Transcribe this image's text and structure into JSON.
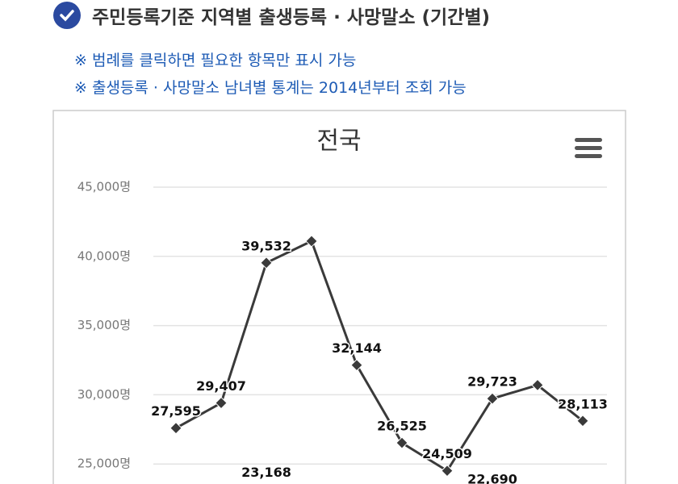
{
  "header": {
    "title": "주민등록기준 지역별 출생등록 · 사망말소 (기간별)",
    "notes": [
      "※ 범례를 클릭하면 필요한 항목만 표시 가능",
      "※ 출생등록 · 사망말소 남녀별 통계는 2014년부터 조회 가능"
    ]
  },
  "chart_data": {
    "type": "line",
    "title": "전국",
    "categories": [
      null,
      null,
      null,
      null,
      null,
      null,
      null,
      null,
      null,
      null
    ],
    "series": [
      {
        "color": "#3a3a3a",
        "values": [
          27595,
          29407,
          39532,
          41100,
          32144,
          26525,
          24509,
          29723,
          30700,
          28113
        ],
        "value_labels": [
          "27,595",
          "29,407",
          "39,532",
          null,
          "32,144",
          "26,525",
          "24,509",
          "29,723",
          null,
          "28,113"
        ]
      },
      {
        "color": "#7cc0e6",
        "values": [
          null,
          null,
          23168,
          null,
          null,
          null,
          null,
          22690,
          null,
          null
        ],
        "value_labels": [
          null,
          null,
          "23,168",
          null,
          null,
          null,
          null,
          "22,690",
          null,
          null
        ]
      }
    ],
    "ylim": [
      20000,
      45000
    ],
    "yticks": [
      {
        "value": 25000,
        "label": "25,000명"
      },
      {
        "value": 30000,
        "label": "30,000명"
      },
      {
        "value": 35000,
        "label": "35,000명"
      },
      {
        "value": 40000,
        "label": "40,000명"
      },
      {
        "value": 45000,
        "label": "45,000명"
      }
    ],
    "grid": true
  }
}
